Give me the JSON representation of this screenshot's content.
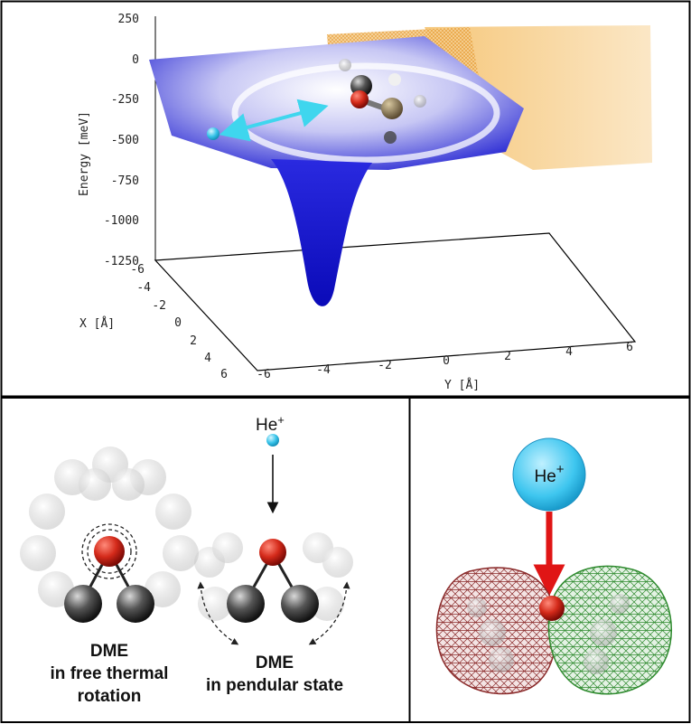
{
  "top_plot": {
    "z_axis_label": "Energy [meV]",
    "x_axis_label": "X [Å]",
    "y_axis_label": "Y [Å]",
    "z_ticks": [
      "250",
      "0",
      "-250",
      "-500",
      "-750",
      "-1000",
      "-1250"
    ],
    "x_ticks": [
      "-6",
      "-4",
      "-2",
      "0",
      "2",
      "4",
      "6"
    ],
    "y_ticks": [
      "-6",
      "-4",
      "-2",
      "0",
      "2",
      "4",
      "6"
    ]
  },
  "bottom_left": {
    "ion_label": "He",
    "ion_charge": "+",
    "free_rotation_label": [
      "DME",
      "in free thermal",
      "rotation"
    ],
    "pendular_label": [
      "DME",
      "in pendular state"
    ]
  },
  "bottom_right": {
    "ion_label": "He",
    "ion_charge": "+"
  },
  "colors": {
    "surface_blue": "#1f1fd6",
    "surface_orange": "#f0b050",
    "ion_cyan": "#38c4ea",
    "oxygen_red": "#d32222",
    "arrow_red": "#e01515",
    "mesh_red": "#8a2a2a",
    "mesh_green": "#2e8a2e"
  }
}
